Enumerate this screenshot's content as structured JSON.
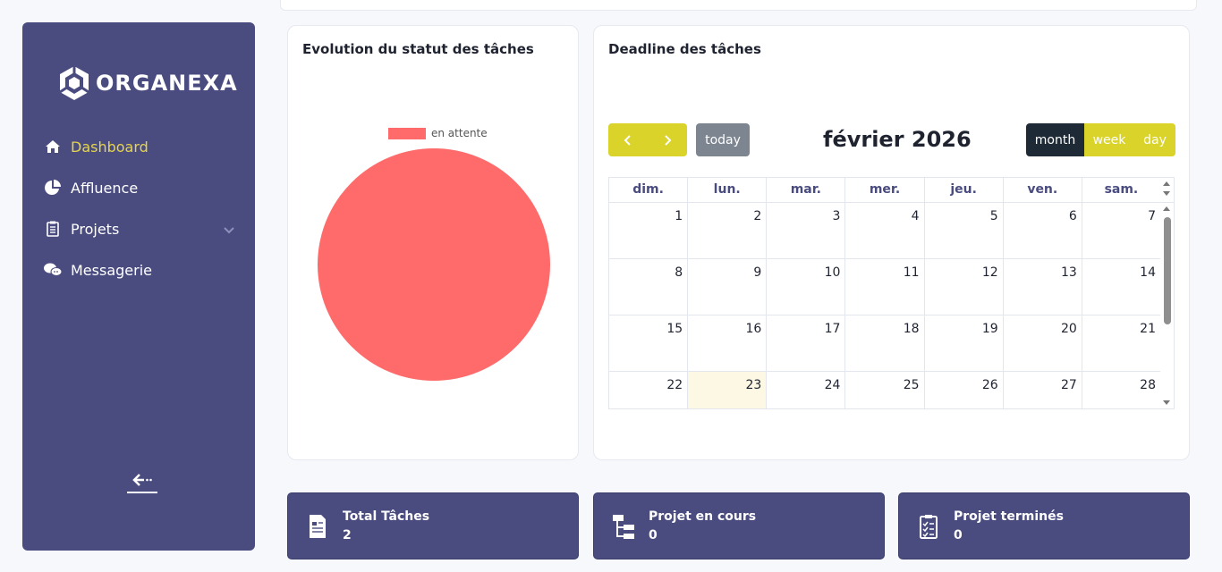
{
  "app": {
    "logo_text": "ORGANEXA"
  },
  "sidebar": {
    "items": [
      {
        "label": "Dashboard",
        "icon": "home-icon",
        "active": true
      },
      {
        "label": "Affluence",
        "icon": "pie-chart-icon"
      },
      {
        "label": "Projets",
        "icon": "clipboard-icon",
        "has_submenu": true
      },
      {
        "label": "Messagerie",
        "icon": "chat-icon"
      }
    ]
  },
  "pie_card": {
    "title": "Evolution du statut des tâches",
    "chart_data": {
      "type": "pie",
      "categories": [
        "en attente"
      ],
      "values": [
        100
      ],
      "legend_position": "top",
      "colors": [
        "#ff6b6b"
      ]
    }
  },
  "calendar_card": {
    "title": "Deadline des tâches",
    "today_label": "today",
    "month_title": "février 2026",
    "views": [
      "month",
      "week",
      "day"
    ],
    "active_view": "month",
    "weekdays": [
      "dim.",
      "lun.",
      "mar.",
      "mer.",
      "jeu.",
      "ven.",
      "sam."
    ],
    "weeks": [
      [
        "1",
        "2",
        "3",
        "4",
        "5",
        "6",
        "7"
      ],
      [
        "8",
        "9",
        "10",
        "11",
        "12",
        "13",
        "14"
      ],
      [
        "15",
        "16",
        "17",
        "18",
        "19",
        "20",
        "21"
      ],
      [
        "22",
        "23",
        "24",
        "25",
        "26",
        "27",
        "28"
      ]
    ],
    "today": "23"
  },
  "stats": [
    {
      "label": "Total Tâches",
      "value": "2",
      "icon": "document-icon"
    },
    {
      "label": "Projet en cours",
      "value": "0",
      "icon": "hierarchy-icon"
    },
    {
      "label": "Projet terminés",
      "value": "0",
      "icon": "checklist-icon"
    }
  ],
  "colors": {
    "sidebar": "#4a4c80",
    "accent": "#d9d32a",
    "active_nav": "#e6d44a",
    "pie": "#ff6b6b"
  }
}
